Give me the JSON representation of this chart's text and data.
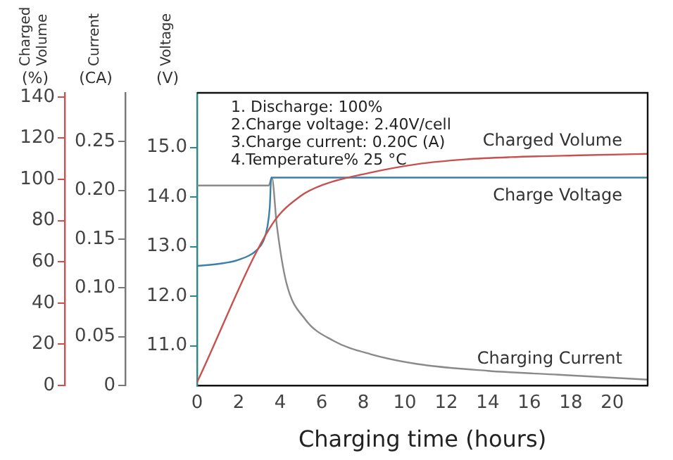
{
  "chart_data": {
    "type": "line",
    "xlabel": "Charging time (hours)",
    "ylabel": "Voltage (V)",
    "y2label": "Current (CA)",
    "y3label": "Charged Volume (%)",
    "annotations": [
      "1. Discharge: 100%",
      "2.Charge voltage: 2.40V/cell",
      "3.Charge current: 0.20C (A)",
      "4.Temperature% 25 °C"
    ],
    "xlim": [
      0,
      21.7
    ],
    "xticks": [
      0,
      2,
      4,
      6,
      8,
      10,
      12,
      14,
      16,
      18,
      20
    ],
    "ylim": [
      10.2,
      16.1
    ],
    "yticks": [
      {
        "value": 11,
        "label": "11.0"
      },
      {
        "value": 12,
        "label": "12.0"
      },
      {
        "value": 13,
        "label": "13.0"
      },
      {
        "value": 14,
        "label": "14.0"
      },
      {
        "value": 15,
        "label": "15.0"
      }
    ],
    "y2lim": [
      0,
      0.3
    ],
    "y2ticks": [
      0,
      {
        "value": 0.05,
        "label": "0.05"
      },
      {
        "value": 0.1,
        "label": "0.10"
      },
      {
        "value": 0.15,
        "label": "0.15"
      },
      {
        "value": 0.2,
        "label": "0.20"
      },
      0.25
    ],
    "y3lim": [
      0,
      142
    ],
    "y3ticks": [
      0,
      20,
      40,
      60,
      80,
      100,
      120,
      140
    ],
    "grid": false,
    "legend": false,
    "marker": "none",
    "line_style": "solid",
    "series": [
      {
        "name": "Charged Volume",
        "color": "#c8504f",
        "axis": "y3",
        "x": [
          0,
          3.61,
          4.97,
          6.1,
          8.36,
          10.6,
          12.9,
          15.1,
          18.5,
          21.7
        ],
        "values": [
          1.6,
          78.1,
          91.8,
          97.5,
          103.3,
          107.4,
          109.7,
          110.8,
          111.7,
          112.4
        ]
      },
      {
        "name": "Charge Voltage",
        "color": "#3d7fa8",
        "axis": "y",
        "x": [
          0,
          1,
          1.97,
          2.9,
          3.2,
          3.39,
          3.5,
          3.57,
          21.7
        ],
        "values": [
          12.61,
          12.65,
          12.73,
          12.94,
          13.12,
          13.41,
          13.8,
          14.39,
          14.39
        ]
      },
      {
        "name": "Charging Current",
        "color": "#8a8a8a",
        "axis": "y2",
        "x": [
          0,
          3.45,
          3.6,
          3.84,
          4.29,
          5.2,
          6.55,
          8.36,
          10.6,
          14.0,
          17.4,
          21.7
        ],
        "values": [
          0.205,
          0.205,
          0.213,
          0.164,
          0.106,
          0.068,
          0.046,
          0.032,
          0.022,
          0.015,
          0.011,
          0.006
        ]
      }
    ]
  }
}
